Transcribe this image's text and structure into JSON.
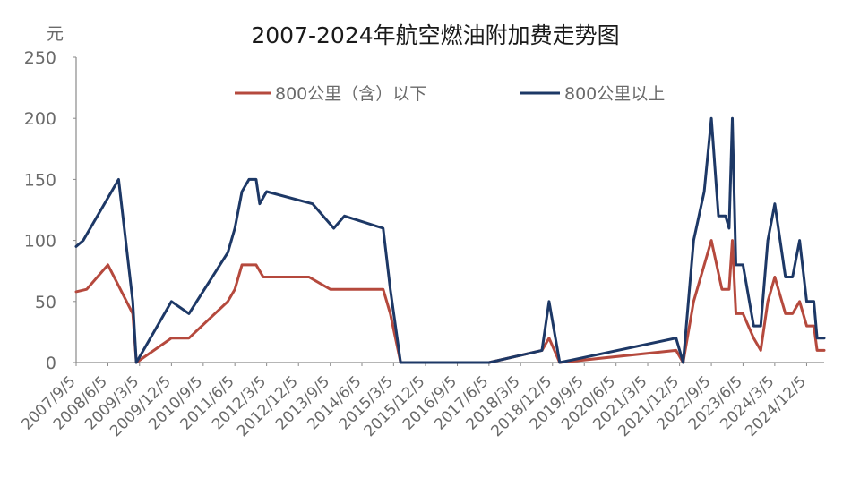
{
  "chart_data": {
    "type": "line",
    "title": "2007-2024年航空燃油附加费走势图",
    "ylabel": "元",
    "xlabel": "",
    "ylim": [
      0,
      250
    ],
    "yticks": [
      "250",
      "200",
      "150",
      "100",
      "50",
      "0"
    ],
    "x_tick_labels": [
      "2007/9/5",
      "2008/6/5",
      "2009/3/5",
      "2009/12/5",
      "2010/9/5",
      "2011/6/5",
      "2012/3/5",
      "2012/12/5",
      "2013/9/5",
      "2014/6/5",
      "2015/3/5",
      "2015/12/5",
      "2016/9/5",
      "2017/6/5",
      "2018/3/5",
      "2018/12/5",
      "2019/9/5",
      "2020/6/5",
      "2021/3/5",
      "2021/12/5",
      "2022/9/5",
      "2023/6/5",
      "2024/3/5",
      "2024/12/5"
    ],
    "grid": false,
    "legend_position": "top",
    "series": [
      {
        "name": "800公里（含）以下",
        "color": "#b5493d",
        "points": [
          [
            "2007-09-05",
            58
          ],
          [
            "2007-12-05",
            60
          ],
          [
            "2008-06-05",
            80
          ],
          [
            "2009-01-05",
            40
          ],
          [
            "2009-02-05",
            0
          ],
          [
            "2009-12-05",
            20
          ],
          [
            "2010-05-05",
            20
          ],
          [
            "2011-04-05",
            50
          ],
          [
            "2011-06-05",
            60
          ],
          [
            "2011-08-05",
            80
          ],
          [
            "2011-12-05",
            80
          ],
          [
            "2012-02-05",
            70
          ],
          [
            "2012-12-05",
            70
          ],
          [
            "2013-03-05",
            70
          ],
          [
            "2013-09-05",
            60
          ],
          [
            "2014-06-05",
            60
          ],
          [
            "2014-12-05",
            60
          ],
          [
            "2015-02-05",
            40
          ],
          [
            "2015-05-05",
            0
          ],
          [
            "2017-06-05",
            0
          ],
          [
            "2018-09-05",
            10
          ],
          [
            "2018-11-05",
            20
          ],
          [
            "2019-02-05",
            0
          ],
          [
            "2021-11-05",
            10
          ],
          [
            "2022-01-05",
            0
          ],
          [
            "2022-04-05",
            50
          ],
          [
            "2022-09-05",
            100
          ],
          [
            "2022-12-05",
            60
          ],
          [
            "2023-02-05",
            60
          ],
          [
            "2023-03-05",
            100
          ],
          [
            "2023-04-05",
            40
          ],
          [
            "2023-06-05",
            40
          ],
          [
            "2023-09-05",
            20
          ],
          [
            "2023-11-05",
            10
          ],
          [
            "2024-01-05",
            50
          ],
          [
            "2024-03-05",
            70
          ],
          [
            "2024-06-05",
            40
          ],
          [
            "2024-08-05",
            40
          ],
          [
            "2024-10-05",
            50
          ],
          [
            "2024-12-05",
            30
          ],
          [
            "2025-02-05",
            30
          ],
          [
            "2025-03-05",
            10
          ],
          [
            "2025-05-05",
            10
          ]
        ]
      },
      {
        "name": "800公里以上",
        "color": "#1d3866",
        "points": [
          [
            "2007-09-05",
            95
          ],
          [
            "2007-11-05",
            100
          ],
          [
            "2008-09-05",
            150
          ],
          [
            "2009-01-05",
            50
          ],
          [
            "2009-02-05",
            0
          ],
          [
            "2009-12-05",
            50
          ],
          [
            "2010-05-05",
            40
          ],
          [
            "2011-04-05",
            90
          ],
          [
            "2011-06-05",
            110
          ],
          [
            "2011-08-05",
            140
          ],
          [
            "2011-10-05",
            150
          ],
          [
            "2011-12-05",
            150
          ],
          [
            "2012-01-05",
            130
          ],
          [
            "2012-03-05",
            140
          ],
          [
            "2013-04-05",
            130
          ],
          [
            "2013-10-05",
            110
          ],
          [
            "2014-01-05",
            120
          ],
          [
            "2014-12-05",
            110
          ],
          [
            "2015-02-05",
            60
          ],
          [
            "2015-05-05",
            0
          ],
          [
            "2017-06-05",
            0
          ],
          [
            "2018-09-05",
            10
          ],
          [
            "2018-11-05",
            50
          ],
          [
            "2019-02-05",
            0
          ],
          [
            "2021-11-05",
            20
          ],
          [
            "2022-01-05",
            0
          ],
          [
            "2022-04-05",
            100
          ],
          [
            "2022-07-05",
            140
          ],
          [
            "2022-09-05",
            200
          ],
          [
            "2022-11-05",
            120
          ],
          [
            "2023-01-05",
            120
          ],
          [
            "2023-02-05",
            110
          ],
          [
            "2023-03-05",
            200
          ],
          [
            "2023-04-05",
            80
          ],
          [
            "2023-06-05",
            80
          ],
          [
            "2023-09-05",
            30
          ],
          [
            "2023-11-05",
            30
          ],
          [
            "2024-01-05",
            100
          ],
          [
            "2024-03-05",
            130
          ],
          [
            "2024-06-05",
            70
          ],
          [
            "2024-08-05",
            70
          ],
          [
            "2024-10-05",
            100
          ],
          [
            "2024-12-05",
            50
          ],
          [
            "2025-02-05",
            50
          ],
          [
            "2025-03-05",
            20
          ],
          [
            "2025-05-05",
            20
          ]
        ]
      }
    ]
  }
}
